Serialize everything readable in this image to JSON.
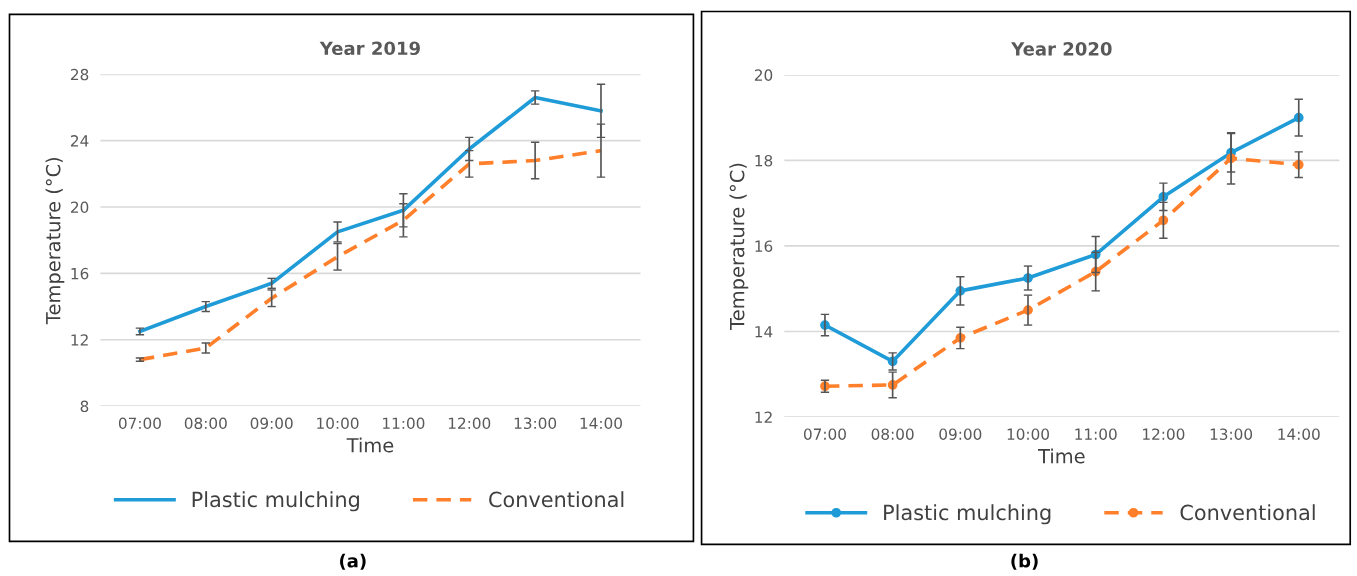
{
  "chart_data": [
    {
      "type": "line",
      "title": "Year 2019",
      "xlabel": "Time",
      "ylabel": "Temperature (°C)",
      "categories": [
        "07:00",
        "08:00",
        "09:00",
        "10:00",
        "11:00",
        "12:00",
        "13:00",
        "14:00"
      ],
      "ylim": [
        8,
        28
      ],
      "yticks": [
        8,
        12,
        16,
        20,
        24,
        28
      ],
      "grid": "y",
      "legend": "bottom",
      "marker": "none",
      "annotations": [
        "(a)"
      ],
      "series": [
        {
          "name": "Plastic mulching",
          "color": "#1f9bd7",
          "line_style": "solid",
          "values": [
            12.5,
            14.0,
            15.4,
            18.5,
            19.8,
            23.5,
            26.6,
            25.8
          ],
          "errors": [
            0.2,
            0.3,
            0.3,
            0.6,
            1.0,
            0.7,
            0.4,
            1.6
          ]
        },
        {
          "name": "Conventional",
          "color": "#ff7f2a",
          "line_style": "dashed",
          "values": [
            10.8,
            11.5,
            14.5,
            17.0,
            19.2,
            22.6,
            22.8,
            23.4
          ],
          "errors": [
            0.1,
            0.3,
            0.5,
            0.8,
            1.0,
            0.8,
            1.1,
            1.6
          ]
        }
      ]
    },
    {
      "type": "line",
      "title": "Year 2020",
      "xlabel": "Time",
      "ylabel": "Temperature (°C)",
      "categories": [
        "07:00",
        "08:00",
        "09:00",
        "10:00",
        "11:00",
        "12:00",
        "13:00",
        "14:00"
      ],
      "ylim": [
        12,
        20
      ],
      "yticks": [
        12,
        14,
        16,
        18,
        20
      ],
      "grid": "y",
      "legend": "bottom",
      "marker": "circle",
      "annotations": [
        "(b)"
      ],
      "series": [
        {
          "name": "Plastic mulching",
          "color": "#1f9bd7",
          "line_style": "solid",
          "values": [
            14.15,
            13.3,
            14.95,
            15.25,
            15.8,
            17.15,
            18.18,
            19.0
          ],
          "errors": [
            0.25,
            0.2,
            0.33,
            0.28,
            0.42,
            0.32,
            0.45,
            0.43
          ]
        },
        {
          "name": "Conventional",
          "color": "#ff7f2a",
          "line_style": "dashed",
          "values": [
            12.72,
            12.75,
            13.85,
            14.5,
            15.4,
            16.6,
            18.05,
            17.9
          ],
          "errors": [
            0.14,
            0.3,
            0.25,
            0.35,
            0.45,
            0.42,
            0.6,
            0.3
          ]
        }
      ]
    }
  ]
}
